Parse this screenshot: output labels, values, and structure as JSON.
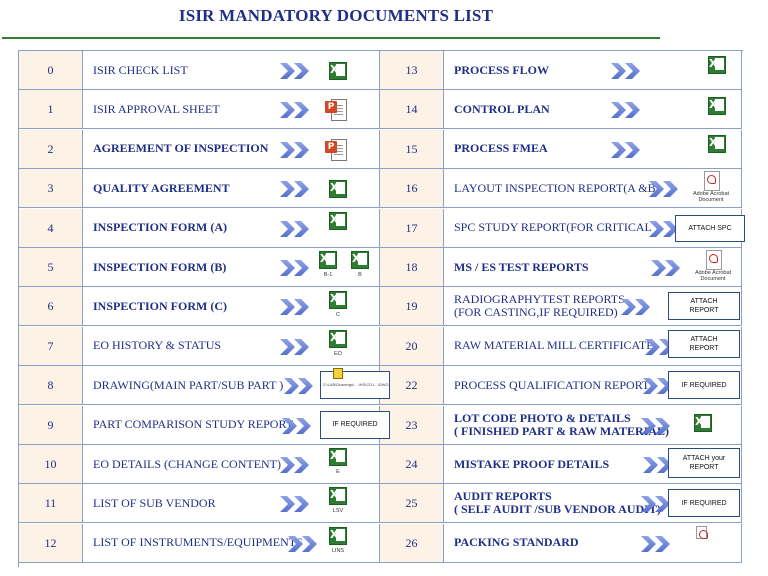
{
  "title": "ISIR MANDATORY DOCUMENTS LIST",
  "rows": [
    {
      "left_no": "0",
      "left_text": "ISIR CHECK LIST",
      "right_no": "13",
      "right_text": "PROCESS FLOW"
    },
    {
      "left_no": "1",
      "left_text": "ISIR APPROVAL SHEET",
      "right_no": "14",
      "right_text": "CONTROL PLAN"
    },
    {
      "left_no": "2",
      "left_text": "AGREEMENT OF INSPECTION",
      "right_no": "15",
      "right_text": "PROCESS FMEA"
    },
    {
      "left_no": "3",
      "left_text": "QUALITY AGREEMENT",
      "right_no": "16",
      "right_text": "LAYOUT INSPECTION REPORT(A &B)"
    },
    {
      "left_no": "4",
      "left_text": "INSPECTION FORM (A)",
      "right_no": "17",
      "right_text": "SPC STUDY REPORT(FOR CRITICAL )"
    },
    {
      "left_no": "5",
      "left_text": "INSPECTION FORM (B)",
      "right_no": "18",
      "right_text": "MS / ES TEST REPORTS"
    },
    {
      "left_no": "6",
      "left_text": "INSPECTION FORM (C)",
      "right_no": "19",
      "right_text": "RADIOGRAPHYTEST REPORTS\n(FOR CASTING,IF REQUIRED)"
    },
    {
      "left_no": "7",
      "left_text": "EO HISTORY & STATUS",
      "right_no": "20",
      "right_text": "RAW MATERIAL MILL CERTIFICATE"
    },
    {
      "left_no": "8",
      "left_text": "DRAWING(MAIN PART/SUB PART )",
      "right_no": "22",
      "right_text": "PROCESS QUALIFICATION REPORT"
    },
    {
      "left_no": "9",
      "left_text": "PART COMPARISON STUDY REPORT",
      "right_no": "23",
      "right_text": "LOT CODE PHOTO & DETAILS\n( FINISHED PART & RAW MATERIAL)"
    },
    {
      "left_no": "10",
      "left_text": "EO DETAILS (CHANGE CONTENT)",
      "right_no": "24",
      "right_text": "MISTAKE PROOF DETAILS"
    },
    {
      "left_no": "11",
      "left_text": "LIST OF SUB VENDOR",
      "right_no": "25",
      "right_text": "AUDIT REPORTS\n( SELF AUDIT /SUB VENDOR AUDIT)"
    },
    {
      "left_no": "12",
      "left_text": "LIST OF INSTRUMENTS/EQUIPMENTS",
      "right_no": "26",
      "right_text": "PACKING STANDARD"
    }
  ],
  "icon_captions": {
    "r5_left_1": "B-1",
    "r5_left_2": "B",
    "r6_left": "C",
    "r7_left": "EO",
    "r10_left": "E",
    "r11_left": "LSV",
    "r12_left": "LINS",
    "r16_right": "Adobe Acrobat\nDocument",
    "r18_right": "Adobe Acrobat\nDocument",
    "r8_left": "Z:\\LAB\\Drawings\\ ...\\HS\\CD1...\\DWG"
  },
  "stickers": {
    "r8_left": "",
    "r9_left": "IF REQUIRED",
    "r17_right": "ATTACH SPC",
    "r19_right": "ATTACH\nREPORT",
    "r20_right": "ATTACH\nREPORT",
    "r22_right": "IF REQUIRED",
    "r24_right": "ATTACH your\nREPORT",
    "r25_right": "IF REQUIRED"
  },
  "colors": {
    "title": "#1f2f86",
    "number_cell_bg": "#fdf2e6",
    "arrow": "#6a85d8",
    "grid": "#8aa0c8",
    "rule": "#2e7d32",
    "excel": "#2e7d32",
    "ppt": "#d24726",
    "pdf": "#c62828"
  },
  "icons": [
    "chevron-arrow-icon",
    "excel-icon",
    "powerpoint-icon",
    "pdf-icon"
  ]
}
